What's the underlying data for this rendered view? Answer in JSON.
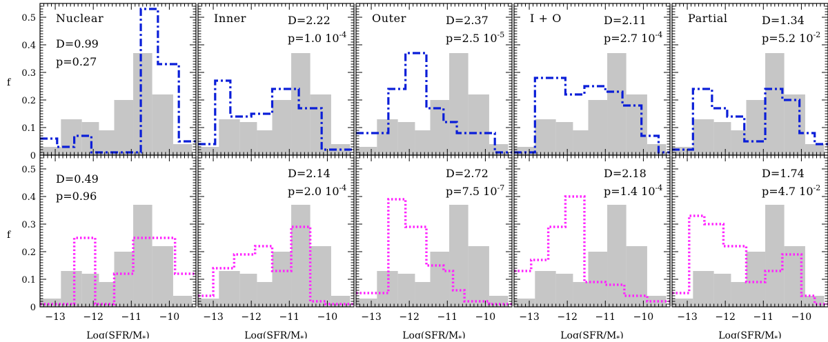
{
  "figure": {
    "ylabel": "f",
    "xlabel": "Log(SFR/M",
    "xlabel_sub": "*",
    "xlabel_close": ")",
    "xticks": [
      -13,
      -12,
      -11,
      -10
    ],
    "yticks_top": [
      0,
      0.1,
      0.2,
      0.3,
      0.4,
      0.5
    ],
    "yticks_bottom": [
      0,
      0.1,
      0.2,
      0.3,
      0.4,
      0.5
    ],
    "colors": {
      "reference": "#c6c6c6",
      "top_series": "#0a1ed8",
      "bottom_series": "#ff22ff"
    }
  },
  "chart_data": {
    "type": "histogram-grid",
    "xlim": [
      -13.4,
      -9.3
    ],
    "ylim": [
      0,
      0.55
    ],
    "bin_edges": [
      -13.4,
      -12.85,
      -12.3,
      -11.85,
      -11.45,
      -10.95,
      -10.45,
      -9.9,
      -9.4
    ],
    "reference_hist": [
      0.03,
      0.13,
      0.12,
      0.09,
      0.2,
      0.37,
      0.22,
      0.04
    ],
    "panels": [
      {
        "row": 0,
        "col": 0,
        "label": "Nuclear",
        "D": "D=0.99",
        "p": "p=0.27",
        "p_exp": "",
        "label_pos": "left",
        "series": {
          "edges": [
            -13.4,
            -12.95,
            -12.5,
            -12.05,
            -11.45,
            -10.75,
            -10.3,
            -9.75,
            -9.3
          ],
          "values": [
            0.06,
            0.03,
            0.07,
            0.01,
            0.01,
            0.53,
            0.33,
            0.05
          ]
        }
      },
      {
        "row": 0,
        "col": 1,
        "label": "Inner",
        "D": "D=2.22",
        "p": "p=1.0 10",
        "p_exp": "-4",
        "label_pos": "right",
        "series": {
          "edges": [
            -13.4,
            -12.95,
            -12.55,
            -12.0,
            -11.45,
            -10.75,
            -10.15,
            -9.7,
            -9.3
          ],
          "values": [
            0.04,
            0.27,
            0.14,
            0.15,
            0.24,
            0.17,
            0.02,
            0.02
          ]
        }
      },
      {
        "row": 0,
        "col": 2,
        "label": "Outer",
        "D": "D=2.37",
        "p": "p=2.5 10",
        "p_exp": "-5",
        "label_pos": "right",
        "series": {
          "edges": [
            -13.4,
            -12.55,
            -12.1,
            -11.55,
            -11.1,
            -10.75,
            -9.75,
            -9.3
          ],
          "values": [
            0.08,
            0.24,
            0.37,
            0.17,
            0.12,
            0.08,
            0.01
          ]
        }
      },
      {
        "row": 0,
        "col": 3,
        "label": "I + O",
        "D": "D=2.11",
        "p": "p=2.7 10",
        "p_exp": "-4",
        "label_pos": "right",
        "series": {
          "edges": [
            -13.4,
            -12.85,
            -12.05,
            -11.55,
            -11.0,
            -10.55,
            -10.05,
            -9.6,
            -9.3
          ],
          "values": [
            0.01,
            0.28,
            0.22,
            0.25,
            0.23,
            0.18,
            0.07,
            0.01
          ]
        }
      },
      {
        "row": 0,
        "col": 4,
        "label": "Partial",
        "D": "D=1.34",
        "p": "p=5.2 10",
        "p_exp": "-2",
        "label_pos": "right",
        "series": {
          "edges": [
            -13.4,
            -12.85,
            -12.35,
            -11.95,
            -11.5,
            -10.95,
            -10.5,
            -10.05,
            -9.65,
            -9.3
          ],
          "values": [
            0.02,
            0.24,
            0.17,
            0.14,
            0.05,
            0.24,
            0.2,
            0.08,
            0.04
          ]
        }
      },
      {
        "row": 1,
        "col": 0,
        "label": "",
        "D": "D=0.49",
        "p": "p=0.96",
        "p_exp": "",
        "label_pos": "left",
        "series": {
          "edges": [
            -13.4,
            -12.95,
            -12.5,
            -11.95,
            -11.45,
            -10.95,
            -10.45,
            -9.85,
            -9.3
          ],
          "values": [
            0.01,
            0.01,
            0.25,
            0.01,
            0.12,
            0.25,
            0.25,
            0.12
          ]
        }
      },
      {
        "row": 1,
        "col": 1,
        "label": "",
        "D": "D=2.14",
        "p": "p=2.0 10",
        "p_exp": "-4",
        "label_pos": "right",
        "series": {
          "edges": [
            -13.4,
            -13.0,
            -12.45,
            -11.9,
            -11.45,
            -10.95,
            -10.45,
            -10.05,
            -9.65,
            -9.3
          ],
          "values": [
            0.04,
            0.14,
            0.19,
            0.22,
            0.13,
            0.29,
            0.02,
            0.01,
            0.01
          ]
        }
      },
      {
        "row": 1,
        "col": 2,
        "label": "",
        "D": "D=2.72",
        "p": "p=7.5 10",
        "p_exp": "-7",
        "label_pos": "right",
        "series": {
          "edges": [
            -13.4,
            -12.55,
            -12.1,
            -11.55,
            -11.1,
            -10.85,
            -10.55,
            -9.9,
            -9.3
          ],
          "values": [
            0.05,
            0.39,
            0.29,
            0.15,
            0.13,
            0.06,
            0.02,
            0.01
          ]
        }
      },
      {
        "row": 1,
        "col": 3,
        "label": "",
        "D": "D=2.18",
        "p": "p=1.4 10",
        "p_exp": "-4",
        "label_pos": "right",
        "series": {
          "edges": [
            -13.4,
            -12.95,
            -12.5,
            -12.05,
            -11.55,
            -11.0,
            -10.5,
            -9.9,
            -9.3
          ],
          "values": [
            0.13,
            0.17,
            0.29,
            0.4,
            0.09,
            0.08,
            0.04,
            0.02
          ]
        }
      },
      {
        "row": 1,
        "col": 4,
        "label": "",
        "D": "D=1.74",
        "p": "p=4.7 10",
        "p_exp": "-2",
        "label_pos": "right",
        "series": {
          "edges": [
            -13.4,
            -12.95,
            -12.55,
            -12.05,
            -11.45,
            -10.95,
            -10.5,
            -10.0,
            -9.65,
            -9.3
          ],
          "values": [
            0.05,
            0.33,
            0.3,
            0.22,
            0.09,
            0.13,
            0.19,
            0.04,
            0.01
          ]
        }
      }
    ]
  }
}
